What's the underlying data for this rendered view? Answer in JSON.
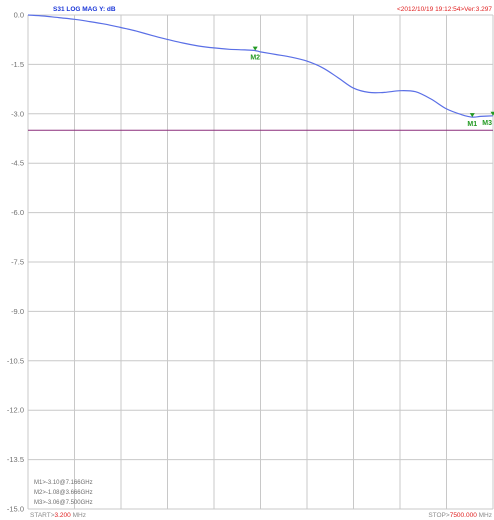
{
  "header": {
    "trace_label": "S31  LOG MAG   Y: dB",
    "timestamp": "<2012/10/19 19:12:54>Ver:3.297"
  },
  "colors": {
    "background": "#ffffff",
    "grid": "#c8c8c8",
    "trace": "#5a6fe6",
    "reference_line": "#8b2f7b",
    "marker": "#229922",
    "label_blue": "#1a36d8",
    "label_red": "#e01e1e",
    "axis_text": "#707070"
  },
  "footer": {
    "start_prefix": "START>",
    "start_value": "3.200",
    "start_unit": " MHz",
    "stop_prefix": "STOP>",
    "stop_value": "7500.000",
    "stop_unit": " MHz"
  },
  "marker_readout": [
    "M1>-3.10@7.166GHz",
    "M2>-1.08@3.666GHz",
    "M3>-3.06@7.500GHz"
  ],
  "chart_data": {
    "type": "line",
    "ylim": [
      -15.0,
      0.0
    ],
    "xlim": [
      3.2,
      7500.0
    ],
    "ytick_labels": [
      "0.0",
      "-1.5",
      "-3.0",
      "-4.5",
      "-6.0",
      "-7.5",
      "-9.0",
      "-10.5",
      "-12.0",
      "-13.5",
      "-15.0"
    ],
    "ytick_values": [
      0.0,
      -1.5,
      -3.0,
      -4.5,
      -6.0,
      -7.5,
      -9.0,
      -10.5,
      -12.0,
      -13.5,
      -15.0
    ],
    "x_divisions": 10,
    "grid": true,
    "reference_line_y": -3.5,
    "series": [
      {
        "name": "S31",
        "x": [
          3.2,
          250,
          500,
          750,
          1000,
          1250,
          1500,
          1750,
          2000,
          2250,
          2500,
          2750,
          3000,
          3250,
          3500,
          3666,
          3750,
          4000,
          4250,
          4500,
          4750,
          5000,
          5250,
          5500,
          5750,
          6000,
          6250,
          6500,
          6750,
          7000,
          7166,
          7300,
          7500
        ],
        "y": [
          0.0,
          -0.03,
          -0.08,
          -0.13,
          -0.2,
          -0.28,
          -0.38,
          -0.49,
          -0.62,
          -0.74,
          -0.85,
          -0.94,
          -1.0,
          -1.04,
          -1.06,
          -1.08,
          -1.12,
          -1.2,
          -1.28,
          -1.4,
          -1.6,
          -1.9,
          -2.22,
          -2.35,
          -2.35,
          -2.3,
          -2.33,
          -2.55,
          -2.85,
          -3.03,
          -3.1,
          -3.08,
          -3.06
        ]
      }
    ],
    "markers": [
      {
        "label": "M1",
        "x": 7166,
        "y": -3.1
      },
      {
        "label": "M2",
        "x": 3666,
        "y": -1.08
      },
      {
        "label": "M3",
        "x": 7500,
        "y": -3.06
      }
    ]
  }
}
